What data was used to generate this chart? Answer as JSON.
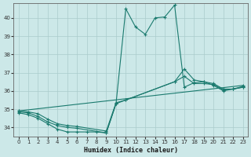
{
  "xlabel": "Humidex (Indice chaleur)",
  "bg_color": "#cce8e8",
  "grid_color": "#aacccc",
  "line_color": "#1a7a6e",
  "xlim": [
    -0.5,
    23.5
  ],
  "ylim": [
    33.5,
    40.8
  ],
  "xticks": [
    0,
    1,
    2,
    3,
    4,
    5,
    6,
    7,
    8,
    9,
    10,
    11,
    12,
    13,
    14,
    15,
    16,
    17,
    18,
    19,
    20,
    21,
    22,
    23
  ],
  "yticks": [
    34,
    35,
    36,
    37,
    38,
    39,
    40
  ],
  "series": [
    {
      "x": [
        0,
        1,
        2,
        3,
        4,
        5,
        6,
        7,
        8,
        9,
        10,
        11,
        12,
        13,
        14,
        15,
        16,
        17,
        18,
        19,
        20,
        21,
        22,
        23
      ],
      "y": [
        34.8,
        34.7,
        34.5,
        34.2,
        33.9,
        33.75,
        33.75,
        33.75,
        33.75,
        33.7,
        35.3,
        40.5,
        39.5,
        39.1,
        40.0,
        40.05,
        40.7,
        36.2,
        36.45,
        36.5,
        36.3,
        36.0,
        36.1,
        36.2
      ]
    },
    {
      "x": [
        0,
        1,
        2,
        3,
        4,
        5,
        6,
        9,
        10,
        11,
        16,
        17,
        18,
        19,
        20,
        21,
        22,
        23
      ],
      "y": [
        34.85,
        34.8,
        34.6,
        34.3,
        34.1,
        34.0,
        33.95,
        33.7,
        35.3,
        35.5,
        36.5,
        37.2,
        36.6,
        36.5,
        36.4,
        36.1,
        36.1,
        36.25
      ]
    },
    {
      "x": [
        0,
        1,
        2,
        3,
        4,
        5,
        6,
        9,
        10,
        11,
        16,
        17,
        18,
        19,
        20,
        21,
        22,
        23
      ],
      "y": [
        34.9,
        34.85,
        34.75,
        34.45,
        34.2,
        34.1,
        34.05,
        33.8,
        35.35,
        35.5,
        36.5,
        36.8,
        36.4,
        36.4,
        36.35,
        36.05,
        36.1,
        36.2
      ]
    },
    {
      "x": [
        0,
        23
      ],
      "y": [
        34.9,
        36.3
      ]
    }
  ]
}
